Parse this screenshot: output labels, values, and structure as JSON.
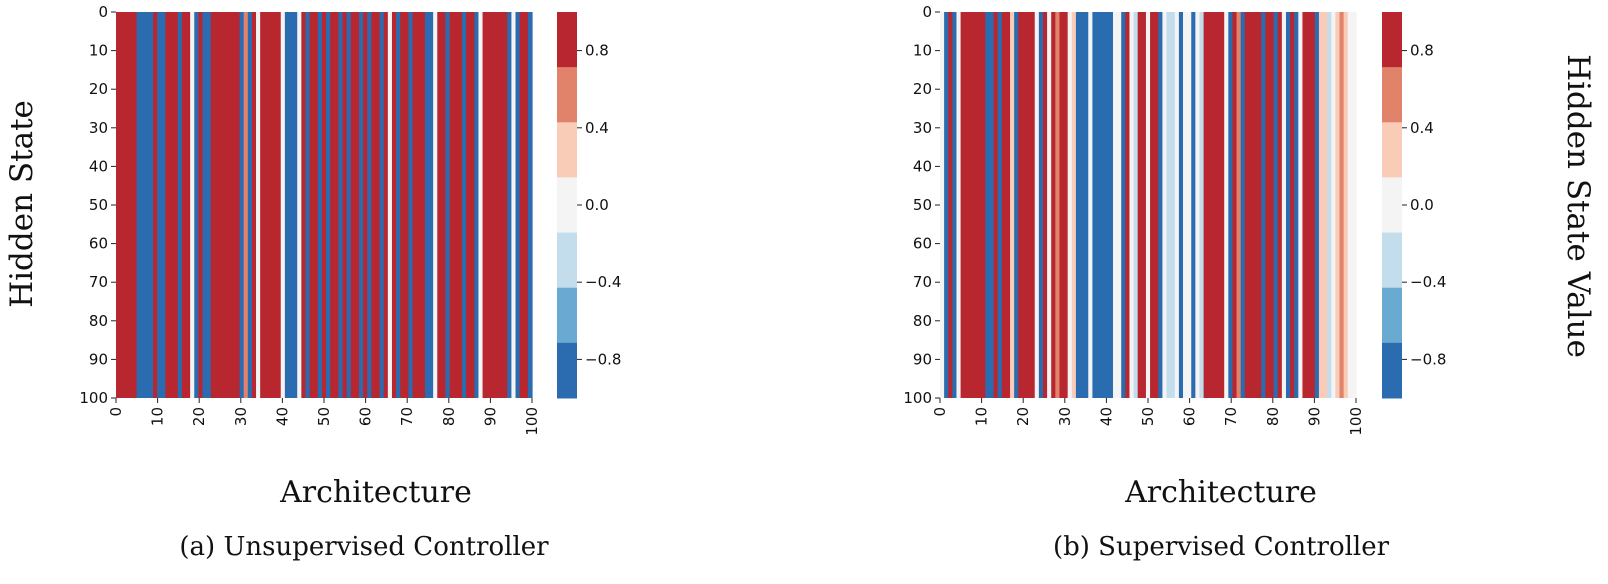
{
  "figure": {
    "y_label": "Hidden State",
    "colorbar_label": "Hidden State Value"
  },
  "colorbar": {
    "ticks": [
      "0.8",
      "0.4",
      "0.0",
      "−0.4",
      "−0.8"
    ],
    "tick_values": [
      0.8,
      0.4,
      0.0,
      -0.4,
      -0.8
    ],
    "range": [
      -1.0,
      1.0
    ],
    "colors": [
      "#2b6cb0",
      "#6aaad2",
      "#c3dded",
      "#f4f4f4",
      "#f8ccb6",
      "#e0836a",
      "#b8262f"
    ]
  },
  "chart_data": [
    {
      "type": "heatmap",
      "caption": "(a) Unsupervised Controller",
      "xlabel": "Architecture",
      "ylabel": "Hidden State",
      "x_ticks": [
        "0",
        "10",
        "20",
        "30",
        "40",
        "50",
        "60",
        "70",
        "80",
        "90",
        "100"
      ],
      "y_ticks": [
        "0",
        "10",
        "20",
        "30",
        "40",
        "50",
        "60",
        "70",
        "80",
        "90",
        "100"
      ],
      "grid": false,
      "legend": "colorbar right",
      "column_values": [
        1,
        1,
        1,
        1,
        1,
        -1,
        -1,
        -1,
        -1,
        1,
        -1,
        -1,
        1,
        1,
        1,
        -1,
        1,
        1,
        0,
        -1,
        1,
        -1,
        -1,
        1,
        1,
        1,
        1,
        1,
        1,
        1,
        -1,
        0.6,
        -1,
        1,
        0,
        1,
        1,
        1,
        1,
        1,
        0,
        -1,
        -1,
        -1,
        0,
        1,
        -1,
        1,
        1,
        -1,
        1,
        -1,
        1,
        1,
        -1,
        1,
        -1,
        1,
        1,
        -1,
        1,
        -1,
        1,
        1,
        -1,
        1,
        0,
        1,
        -1,
        1,
        1,
        -1,
        1,
        1,
        1,
        -1,
        -1,
        0,
        1,
        1,
        -1,
        1,
        1,
        1,
        -1,
        1,
        1,
        -1,
        0,
        1,
        1,
        1,
        1,
        1,
        1,
        -1,
        0,
        -1,
        1,
        1,
        -1
      ]
    },
    {
      "type": "heatmap",
      "caption": "(b) Supervised Controller",
      "xlabel": "Architecture",
      "ylabel": "Hidden State",
      "x_ticks": [
        "0",
        "10",
        "20",
        "30",
        "40",
        "50",
        "60",
        "70",
        "80",
        "90",
        "100"
      ],
      "y_ticks": [
        "0",
        "10",
        "20",
        "30",
        "40",
        "50",
        "60",
        "70",
        "80",
        "90",
        "100"
      ],
      "grid": false,
      "legend": "colorbar right",
      "column_values": [
        0,
        -1,
        1,
        -1,
        0,
        1,
        1,
        1,
        1,
        1,
        1,
        -1,
        -1,
        1,
        -1,
        1,
        1,
        0.3,
        -1,
        1,
        1,
        1,
        1,
        0,
        -1,
        1,
        0,
        1,
        0.6,
        1,
        1,
        0,
        0.3,
        -1,
        -1,
        -1,
        0,
        -1,
        -1,
        -1,
        -1,
        -1,
        0,
        0,
        -1,
        1,
        0,
        -0.4,
        1,
        1,
        0,
        1,
        1,
        -1,
        0,
        -0.4,
        -0.4,
        0,
        -1,
        0,
        0,
        -1,
        0,
        -0.4,
        1,
        1,
        1,
        1,
        1,
        0,
        -1,
        1,
        0.6,
        -1,
        1,
        1,
        1,
        1,
        -1,
        1,
        1,
        -1,
        1,
        0,
        -1,
        1,
        -1,
        0,
        1,
        1,
        1,
        -1,
        0.3,
        0.3,
        -0.4,
        0,
        0.3,
        0.6,
        0.3,
        0,
        0
      ]
    }
  ]
}
